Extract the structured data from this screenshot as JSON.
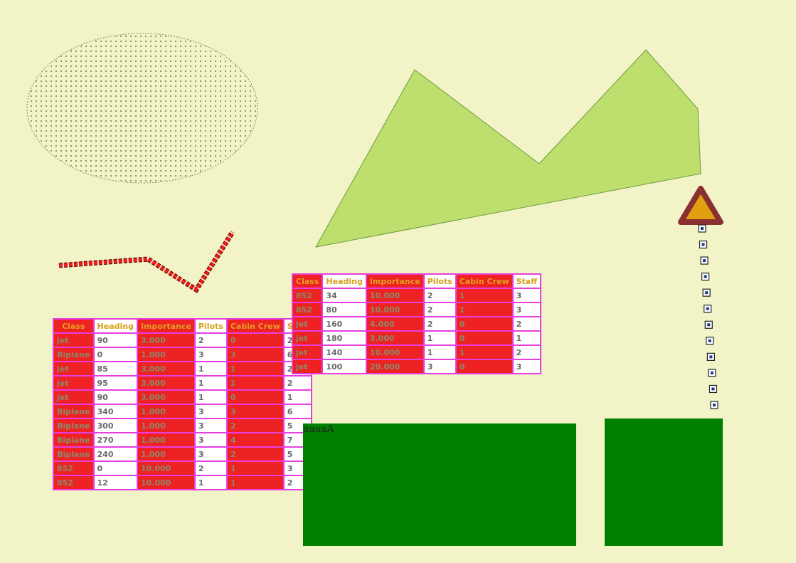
{
  "colors": {
    "background": "#f2f4c8",
    "polygon_fill": "#bedf6e",
    "table_border": "#e83ee0",
    "table_red": "#ee2222",
    "green_box": "#008000",
    "warning_outer": "#8b3030",
    "warning_inner": "#e0a010"
  },
  "icons": {
    "warning": "warning-triangle-icon",
    "waypoint": "square-waypoint-icon"
  },
  "table_left": {
    "headers": [
      "Class",
      "Heading",
      "Importance",
      "Pilots",
      "Cabin Crew",
      "Staff"
    ],
    "rows": [
      [
        "jet",
        "90",
        "3.000",
        "2",
        "0",
        "2"
      ],
      [
        "Biplane",
        "0",
        "1.000",
        "3",
        "3",
        "6"
      ],
      [
        "jet",
        "85",
        "3.000",
        "1",
        "1",
        "2"
      ],
      [
        "jet",
        "95",
        "3.000",
        "1",
        "1",
        "2"
      ],
      [
        "jet",
        "90",
        "3.000",
        "1",
        "0",
        "1"
      ],
      [
        "Biplane",
        "340",
        "1.000",
        "3",
        "3",
        "6"
      ],
      [
        "Biplane",
        "300",
        "1.000",
        "3",
        "2",
        "5"
      ],
      [
        "Biplane",
        "270",
        "1.000",
        "3",
        "4",
        "7"
      ],
      [
        "Biplane",
        "240",
        "1.000",
        "3",
        "2",
        "5"
      ],
      [
        "852",
        "0",
        "10.000",
        "2",
        "1",
        "3"
      ],
      [
        "852",
        "12",
        "10.000",
        "1",
        "1",
        "2"
      ]
    ]
  },
  "table_right": {
    "headers": [
      "Class",
      "Heading",
      "Importance",
      "Pilots",
      "Cabin Crew",
      "Staff"
    ],
    "rows": [
      [
        "852",
        "34",
        "10.000",
        "2",
        "1",
        "3"
      ],
      [
        "852",
        "80",
        "10.000",
        "2",
        "1",
        "3"
      ],
      [
        "jet",
        "160",
        "4.000",
        "2",
        "0",
        "2"
      ],
      [
        "jet",
        "180",
        "3.000",
        "1",
        "0",
        "1"
      ],
      [
        "jet",
        "140",
        "10.000",
        "1",
        "1",
        "2"
      ],
      [
        "jet",
        "100",
        "20.000",
        "3",
        "0",
        "3"
      ]
    ]
  },
  "green_box_label": "aaaaA"
}
